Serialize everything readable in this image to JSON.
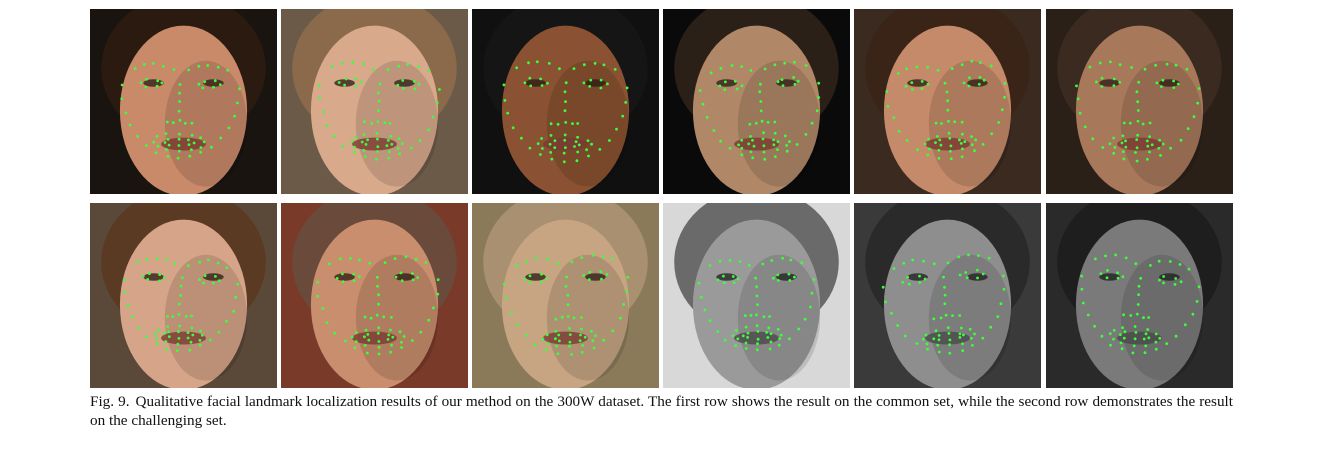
{
  "figure": {
    "label": "Fig. 9.",
    "caption": "Qualitative facial landmark localization results of our method on the 300W dataset. The first row shows the result on the common set, while the second row demonstrates the result on the challenging set.",
    "rows": [
      {
        "tiles": [
          {
            "skin": "#c98a6a",
            "bg": "#1a1410",
            "hair": "#2a1a10",
            "grayscale": false
          },
          {
            "skin": "#d9a98c",
            "bg": "#6b5a48",
            "hair": "#8a6a4a",
            "grayscale": false
          },
          {
            "skin": "#8a5232",
            "bg": "#101010",
            "hair": "#151515",
            "grayscale": false
          },
          {
            "skin": "#b08868",
            "bg": "#0a0a0a",
            "hair": "#2a2018",
            "grayscale": false
          },
          {
            "skin": "#c48a6a",
            "bg": "#3a2a20",
            "hair": "#3a2418",
            "grayscale": false
          },
          {
            "skin": "#a8785a",
            "bg": "#2a2018",
            "hair": "#3a2a20",
            "grayscale": false
          }
        ]
      },
      {
        "tiles": [
          {
            "skin": "#d6a488",
            "bg": "#5a4838",
            "hair": "#5a3a22",
            "grayscale": false
          },
          {
            "skin": "#c98e6e",
            "bg": "#7a3a2a",
            "hair": "#6a4a3a",
            "grayscale": false
          },
          {
            "skin": "#c7a583",
            "bg": "#8a7a5a",
            "hair": "#a89070",
            "grayscale": false
          },
          {
            "skin": "#9a9a9a",
            "bg": "#d8d8d8",
            "hair": "#6a6a6a",
            "grayscale": true
          },
          {
            "skin": "#8e8e8e",
            "bg": "#3a3a3a",
            "hair": "#2a2a2a",
            "grayscale": true
          },
          {
            "skin": "#7a7a7a",
            "bg": "#2a2a2a",
            "hair": "#1e1e1e",
            "grayscale": true
          }
        ]
      }
    ],
    "landmark_color": "#3cff3c"
  }
}
